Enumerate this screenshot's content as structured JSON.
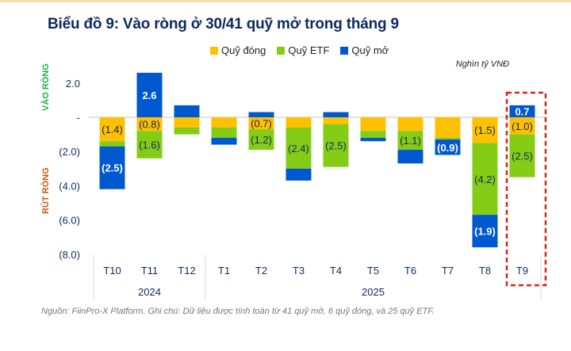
{
  "title": "Biểu đồ 9: Vào ròng ở 30/41 quỹ mở trong tháng 9",
  "unit_label": "Nghìn tỷ VNĐ",
  "side_labels": {
    "inflow": "VÀO RÒNG",
    "outflow": "RÚT RÒNG"
  },
  "source_note": "Nguồn: FiinPro-X Platform. Ghi chú: Dữ liệu được tính toán từ 41 quỹ mở, 6 quỹ đóng, và 25 quỹ ETF.",
  "colors": {
    "closed": "#ffc000",
    "etf": "#84cc16",
    "open": "#0058d0",
    "highlight": "#e0201b",
    "text": "#0e2a5c"
  },
  "chart_data": {
    "type": "bar",
    "stacked": true,
    "title": "Biểu đồ 9: Vào ròng ở 30/41 quỹ mở trong tháng 9",
    "xlabel": "",
    "ylabel": "Nghìn tỷ VNĐ",
    "ylim": [
      -8.0,
      2.8
    ],
    "yticks": [
      2.0,
      0,
      -2.0,
      -4.0,
      -6.0,
      -8.0
    ],
    "ytick_labels": [
      "2.0",
      "-",
      "(2.0)",
      "(4.0)",
      "(6.0)",
      "(8.0)"
    ],
    "categories": [
      "T10",
      "T11",
      "T12",
      "T1",
      "T2",
      "T3",
      "T4",
      "T5",
      "T6",
      "T7",
      "T8",
      "T9"
    ],
    "groups": [
      {
        "label": "2024",
        "from": 0,
        "to": 2
      },
      {
        "label": "2025",
        "from": 3,
        "to": 11
      }
    ],
    "legend": {
      "placement": "top-center",
      "entries": [
        "Quỹ đóng",
        "Quỹ ETF",
        "Quỹ mở"
      ]
    },
    "series": [
      {
        "name": "Quỹ đóng",
        "key": "closed",
        "values": [
          -1.4,
          -0.8,
          -0.6,
          -0.6,
          -0.7,
          -0.6,
          -0.4,
          -0.8,
          -0.8,
          -1.2,
          -1.5,
          -1.0
        ],
        "labels": [
          "(1.4)",
          "(0.8)",
          "",
          "",
          "(0.7)",
          "",
          "",
          "",
          "",
          "",
          "(1.5)",
          "(1.0)"
        ]
      },
      {
        "name": "Quỹ ETF",
        "key": "etf",
        "values": [
          -0.3,
          -1.6,
          -0.4,
          -0.6,
          -1.2,
          -2.4,
          -2.5,
          -0.4,
          -1.1,
          -0.1,
          -4.2,
          -2.5
        ],
        "labels": [
          "",
          "(1.6)",
          "",
          "",
          "(1.2)",
          "(2.4)",
          "(2.5)",
          "",
          "(1.1)",
          "",
          "(4.2)",
          "(2.5)"
        ]
      },
      {
        "name": "Quỹ mở",
        "key": "open",
        "values": [
          -2.5,
          2.6,
          0.7,
          -0.4,
          0.3,
          -0.7,
          0.3,
          -0.2,
          -0.8,
          -0.9,
          -1.9,
          0.7
        ],
        "labels": [
          "(2.5)",
          "2.6",
          "",
          "",
          "",
          "",
          "",
          "",
          "",
          "(0.9)",
          "(1.9)",
          "0.7"
        ]
      }
    ],
    "highlight_category": "T9",
    "grid": false
  }
}
